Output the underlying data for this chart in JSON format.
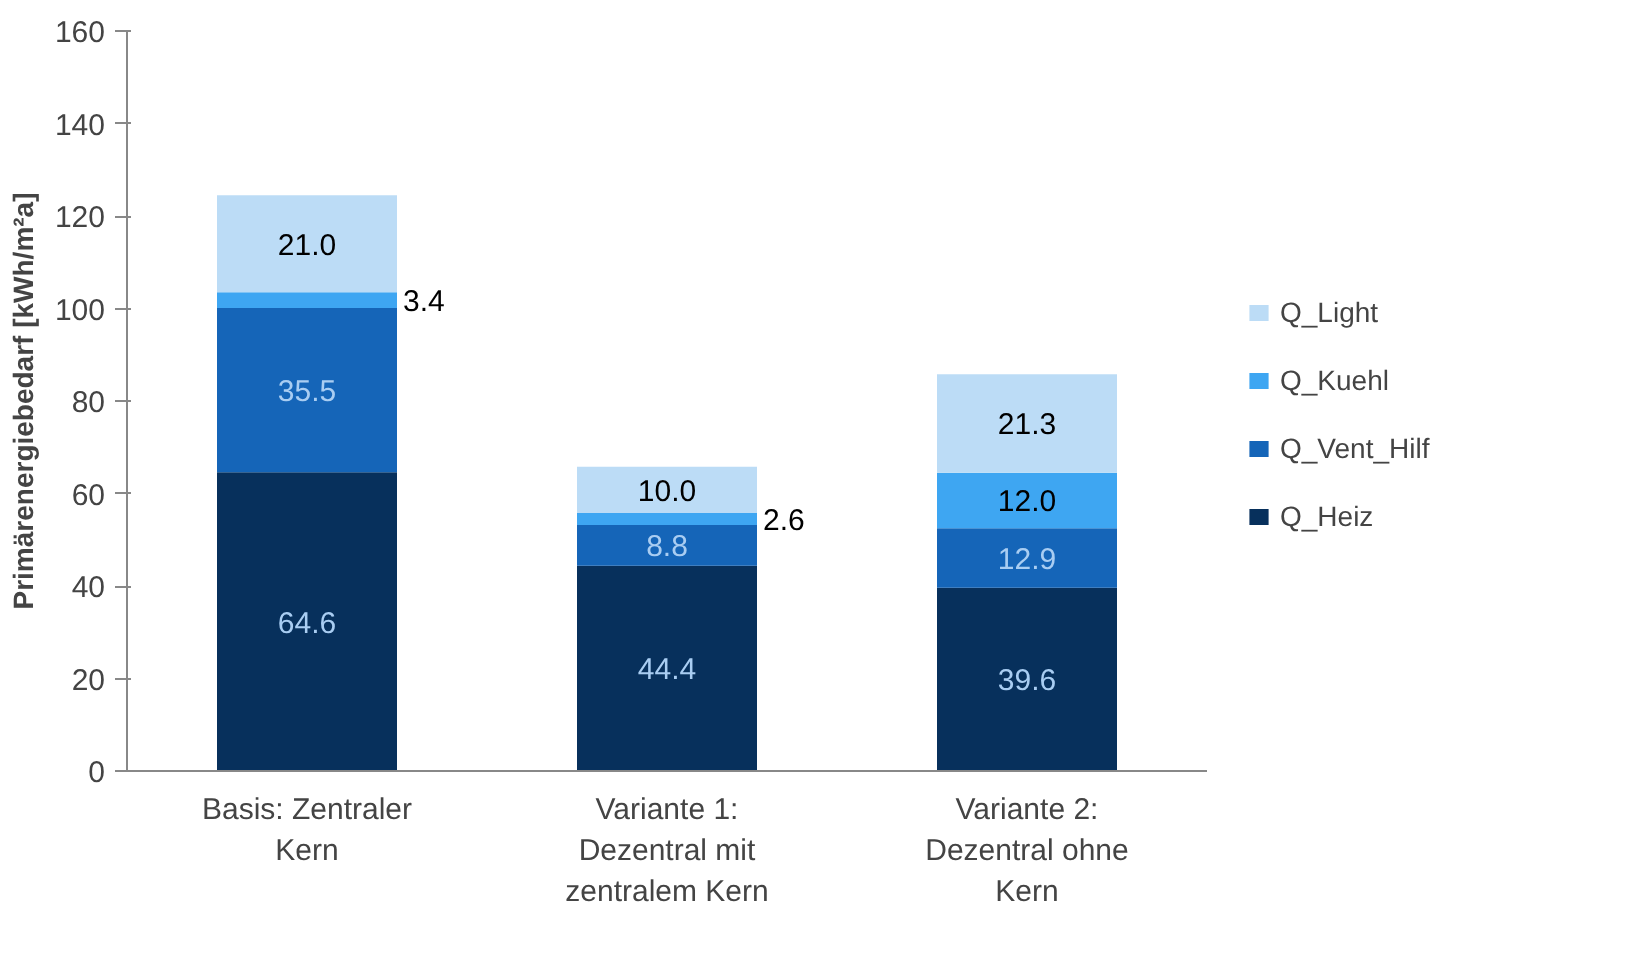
{
  "chart_data": {
    "type": "bar",
    "stacked": true,
    "ylabel": "Primärenergiebedarf [kWh/m²a]",
    "categories": [
      "Basis: Zentraler Kern",
      "Variante 1: Dezentral mit zentralem Kern",
      "Variante 2: Dezentral ohne Kern"
    ],
    "series": [
      {
        "name": "Q_Heiz",
        "color": "#07305c",
        "values": [
          64.6,
          44.4,
          39.6
        ],
        "value_labels": [
          "64.6",
          "44.4",
          "39.6"
        ]
      },
      {
        "name": "Q_Vent_Hilf",
        "color": "#1565b8",
        "values": [
          35.5,
          8.8,
          12.9
        ],
        "value_labels": [
          "35.5",
          "8.8",
          "12.9"
        ]
      },
      {
        "name": "Q_Kuehl",
        "color": "#3ea6f2",
        "values": [
          3.4,
          2.6,
          12.0
        ],
        "value_labels": [
          "3.4",
          "2.6",
          "12.0"
        ]
      },
      {
        "name": "Q_Light",
        "color": "#bcdcf6",
        "values": [
          21.0,
          10.0,
          21.3
        ],
        "value_labels": [
          "21.0",
          "10.0",
          "21.3"
        ]
      }
    ],
    "ylim": [
      0,
      160
    ],
    "yticks": [
      0,
      20,
      40,
      60,
      80,
      100,
      120,
      140,
      160
    ],
    "grid": false,
    "legend": "right"
  }
}
